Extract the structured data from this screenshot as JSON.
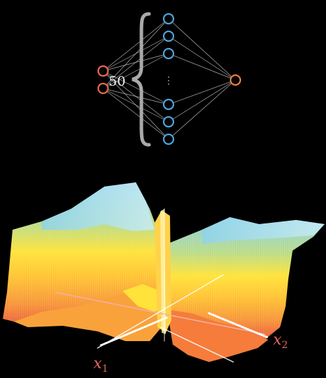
{
  "network": {
    "inputs": 2,
    "hidden_visible": [
      "h1",
      "h2",
      "h3",
      "h4",
      "h5",
      "h6"
    ],
    "outputs": 1,
    "hidden_size_label": "50",
    "ellipsis": "⋮",
    "colors": {
      "input": "#e8694a",
      "hidden": "#4fa3d9",
      "output": "#e8803a",
      "edge": "#cfcfcf",
      "brace": "#a9a9a9",
      "text": "#f2f2f2"
    }
  },
  "surface": {
    "axis_labels": {
      "x1": "x",
      "x1_sub": "1",
      "x2": "x",
      "x2_sub": "2"
    },
    "label_color": "#e0685a",
    "gradient_colors": [
      "#7fc6e6",
      "#b6d98c",
      "#ffe23a",
      "#ffc233",
      "#f79a3a",
      "#ef5f3e"
    ]
  }
}
